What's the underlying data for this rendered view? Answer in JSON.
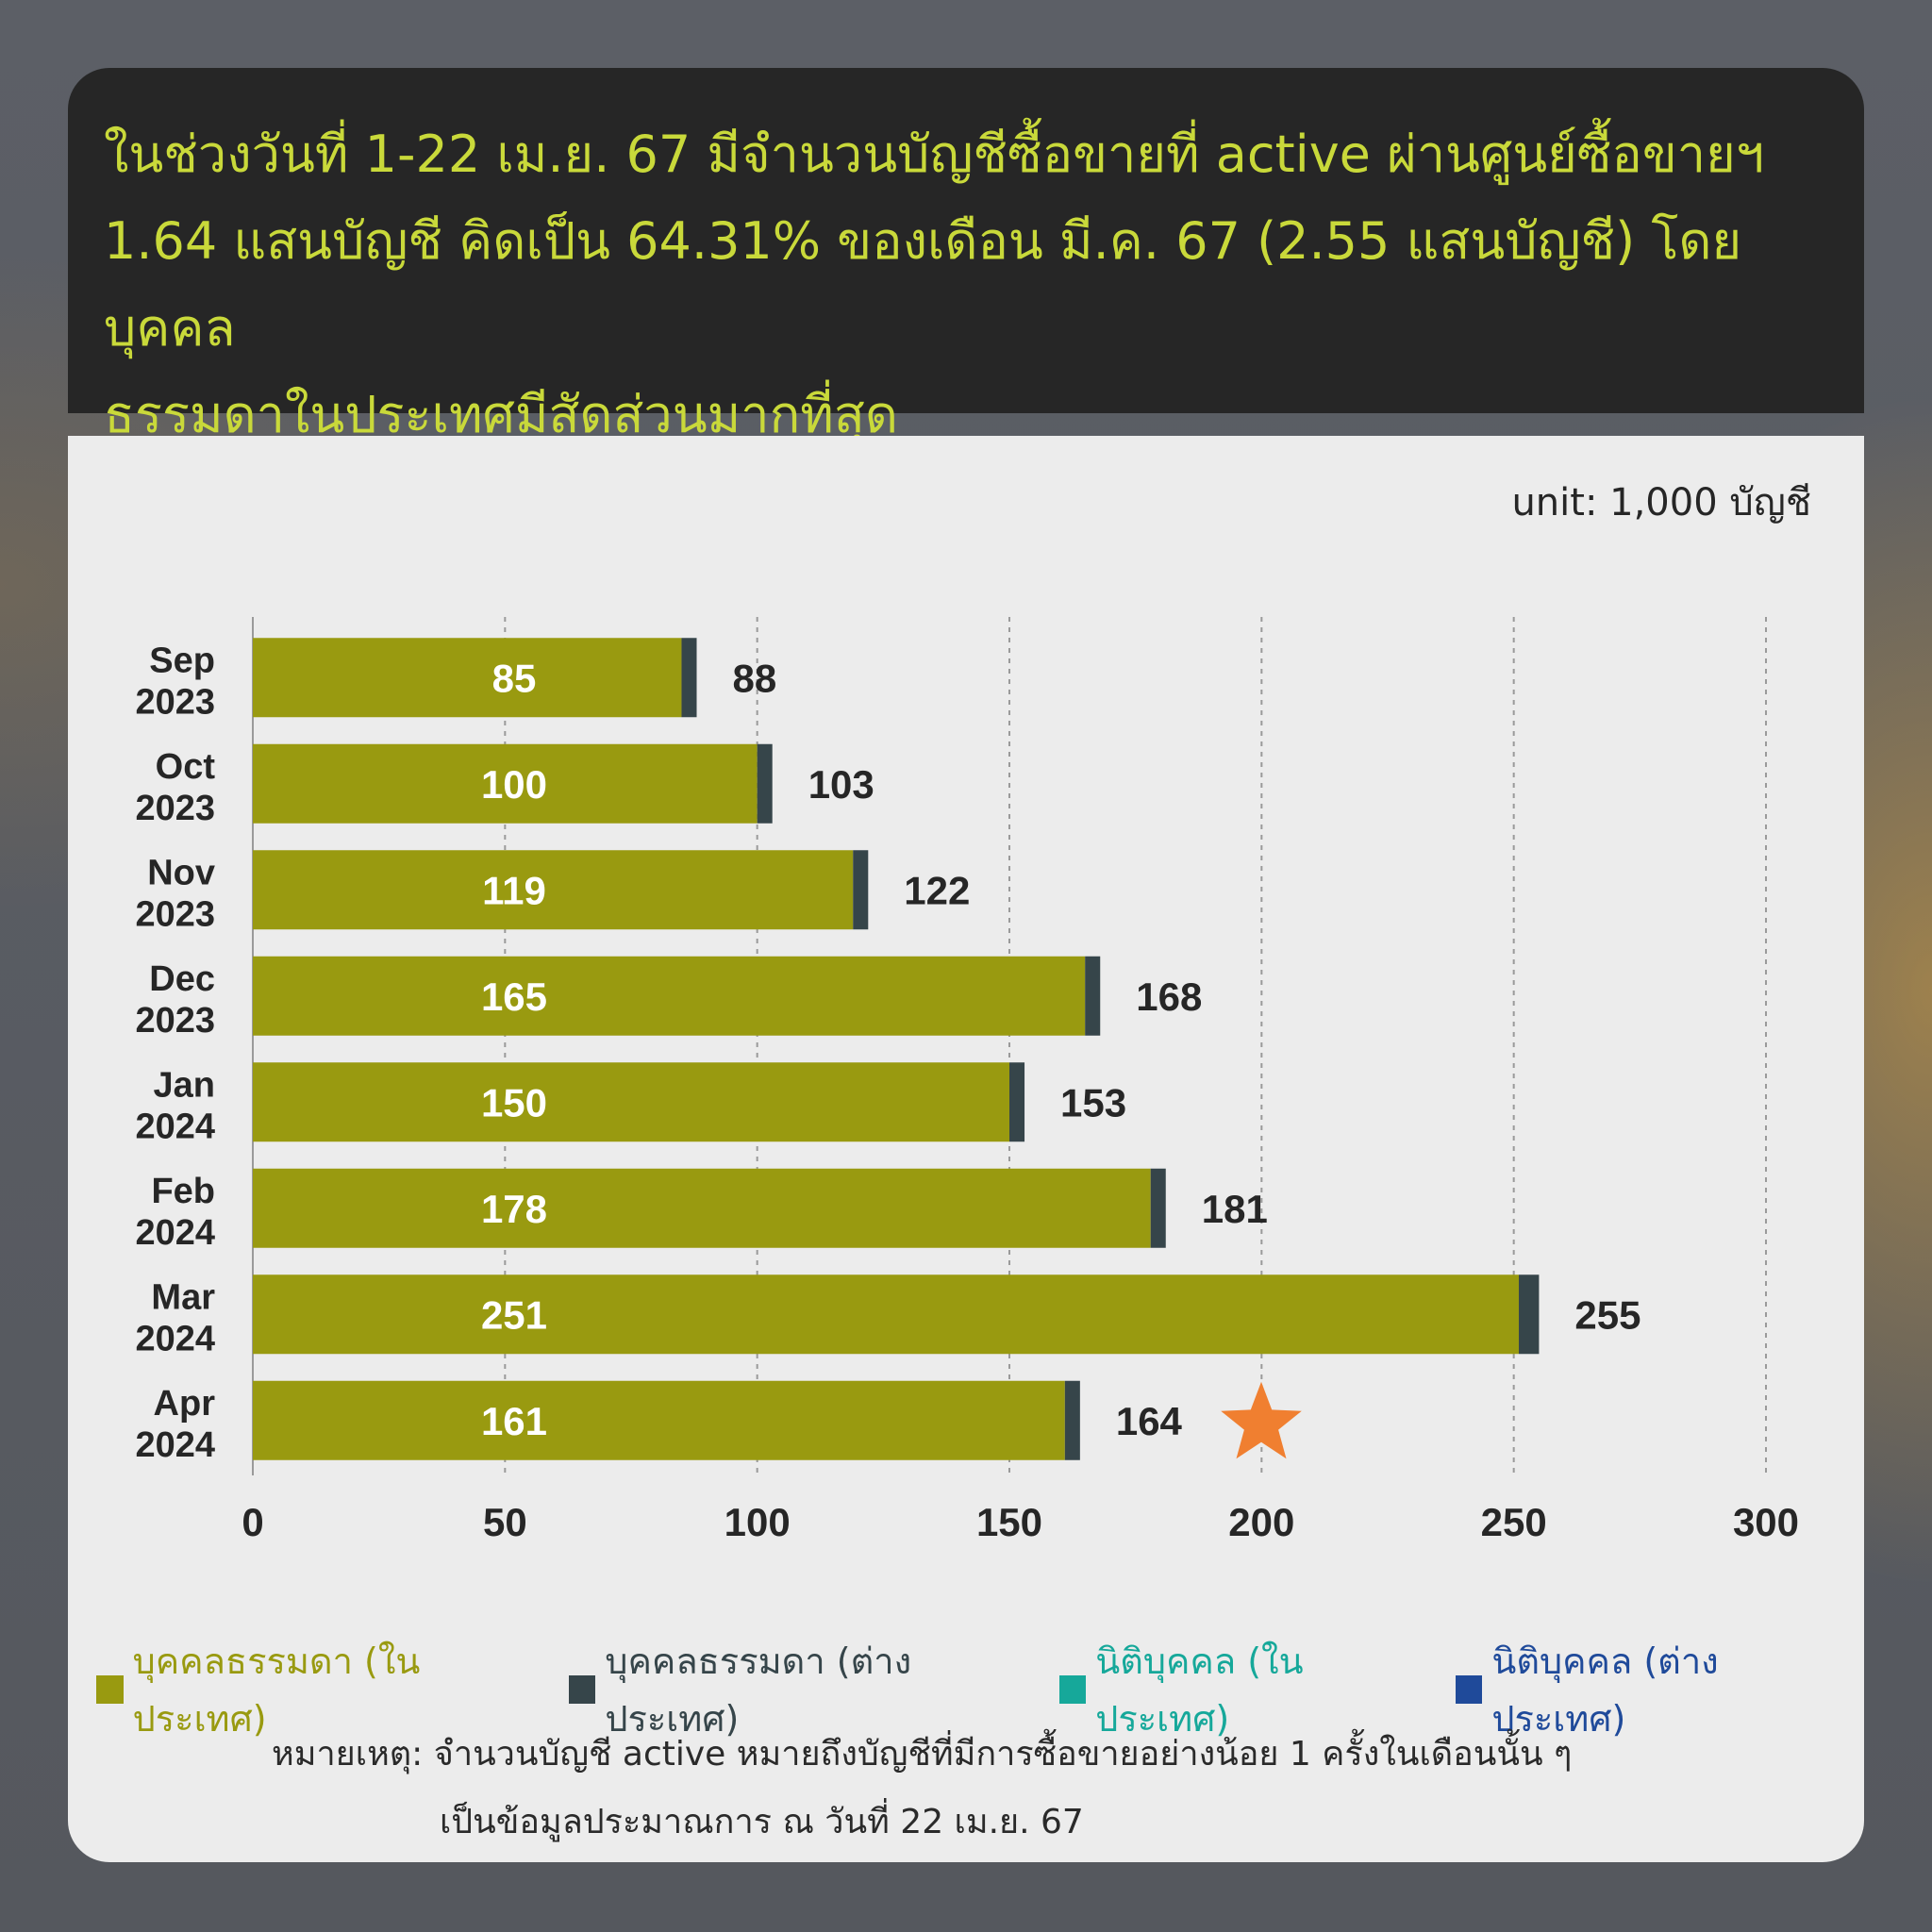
{
  "header": {
    "line1": "ในช่วงวันที่ 1-22 เม.ย. 67 มีจำนวนบัญชีซื้อขายที่ active ผ่านศูนย์ซื้อขายฯ",
    "line2": "1.64 แสนบัญชี คิดเป็น 64.31% ของเดือน มี.ค. 67 (2.55 แสนบัญชี) โดยบุคคล",
    "line3": "ธรรมดาในประเทศมีสัดส่วนมากที่สุด"
  },
  "unit": "unit: 1,000 บัญชี",
  "chart_data": {
    "type": "bar",
    "orientation": "horizontal",
    "stacked": true,
    "categories": [
      [
        "Sep",
        "2023"
      ],
      [
        "Oct",
        "2023"
      ],
      [
        "Nov",
        "2023"
      ],
      [
        "Dec",
        "2023"
      ],
      [
        "Jan",
        "2024"
      ],
      [
        "Feb",
        "2024"
      ],
      [
        "Mar",
        "2024"
      ],
      [
        "Apr",
        "2024"
      ]
    ],
    "series": [
      {
        "name": "บุคคลธรรมดา (ในประเทศ)",
        "color": "#999a10",
        "values": [
          85,
          100,
          119,
          165,
          150,
          178,
          251,
          161
        ]
      },
      {
        "name": "บุคคลธรรมดา (ต่างประเทศ)",
        "color": "#36454a",
        "values": [
          3,
          3,
          3,
          3,
          3,
          3,
          4,
          3
        ]
      },
      {
        "name": "นิติบุคคล (ในประเทศ)",
        "color": "#16a89a",
        "values": [
          0,
          0,
          0,
          0,
          0,
          0,
          0,
          0
        ]
      },
      {
        "name": "นิติบุคคล (ต่างประเทศ)",
        "color": "#1f4a9a",
        "values": [
          0,
          0,
          0,
          0,
          0,
          0,
          0,
          0
        ]
      }
    ],
    "bar_labels": [
      "85",
      "100",
      "119",
      "165",
      "150",
      "178",
      "251",
      "161"
    ],
    "totals": [
      88,
      103,
      122,
      168,
      153,
      181,
      255,
      164
    ],
    "xlim": [
      0,
      300
    ],
    "xticks": [
      0,
      50,
      100,
      150,
      200,
      250,
      300
    ],
    "grid": "vertical dashed",
    "highlight": {
      "category_index": 7,
      "marker": "star",
      "color": "#f07f30"
    },
    "legend_position": "bottom"
  },
  "legend_colors": [
    "#999a10",
    "#36454a",
    "#16a89a",
    "#1f4a9a"
  ],
  "note": {
    "line1": "หมายเหตุ: จำนวนบัญชี active หมายถึงบัญชีที่มีการซื้อขายอย่างน้อย 1 ครั้งในเดือนนั้น ๆ",
    "line2": "เป็นข้อมูลประมาณการ ณ วันที่ 22 เม.ย. 67"
  }
}
